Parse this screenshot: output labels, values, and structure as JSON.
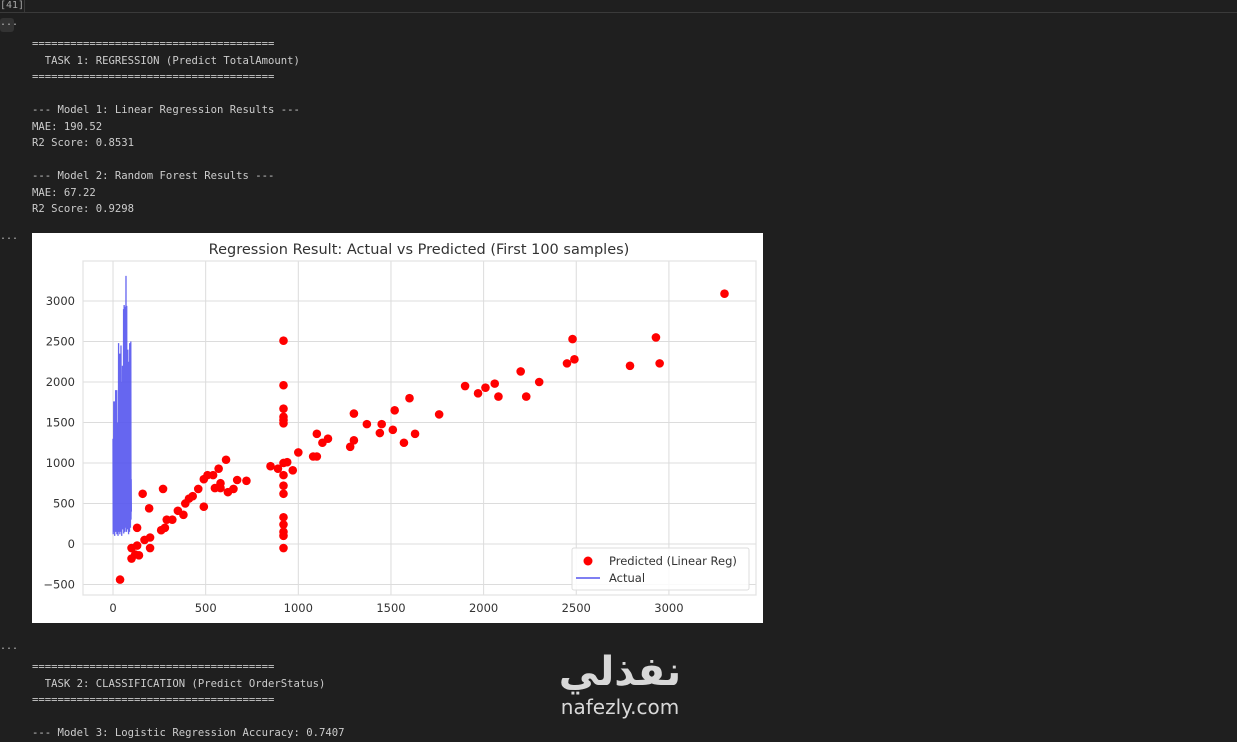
{
  "cell": {
    "execution_count": "[41]",
    "more_label": "..."
  },
  "output_top": [
    "======================================",
    "  TASK 1: REGRESSION (Predict TotalAmount)",
    "======================================",
    "",
    "--- Model 1: Linear Regression Results ---",
    "MAE: 190.52",
    "R2 Score: 0.8531",
    "",
    "--- Model 2: Random Forest Results ---",
    "MAE: 67.22",
    "R2 Score: 0.9298"
  ],
  "output_bottom": [
    "======================================",
    "  TASK 2: CLASSIFICATION (Predict OrderStatus)",
    "======================================",
    "",
    "--- Model 3: Logistic Regression Accuracy: 0.7407"
  ],
  "watermark": {
    "arabic": "نفذلي",
    "latin": "nafezly.com"
  },
  "chart_data": {
    "type": "scatter",
    "title": "Regression Result: Actual vs Predicted (First 100 samples)",
    "xlim": [
      -162,
      3470
    ],
    "ylim": [
      -630,
      3494
    ],
    "xticks": [
      0,
      500,
      1000,
      1500,
      2000,
      2500,
      3000
    ],
    "yticks": [
      -500,
      0,
      500,
      1000,
      1500,
      2000,
      2500,
      3000
    ],
    "grid": true,
    "legend": {
      "placement": "lower-right",
      "entries": [
        "Predicted (Linear Reg)",
        "Actual"
      ]
    },
    "colors": {
      "predicted": "#ff0000",
      "actual": "#5555ee"
    },
    "series": [
      {
        "name": "Predicted (Linear Reg)",
        "kind": "scatter",
        "points": [
          [
            38,
            -440
          ],
          [
            160,
            620
          ],
          [
            195,
            440
          ],
          [
            130,
            200
          ],
          [
            270,
            680
          ],
          [
            100,
            -180
          ],
          [
            120,
            -130
          ],
          [
            100,
            -50
          ],
          [
            130,
            -20
          ],
          [
            170,
            50
          ],
          [
            200,
            80
          ],
          [
            200,
            -50
          ],
          [
            140,
            -140
          ],
          [
            260,
            170
          ],
          [
            280,
            200
          ],
          [
            290,
            300
          ],
          [
            320,
            300
          ],
          [
            350,
            410
          ],
          [
            380,
            360
          ],
          [
            390,
            500
          ],
          [
            410,
            560
          ],
          [
            430,
            590
          ],
          [
            460,
            680
          ],
          [
            490,
            460
          ],
          [
            490,
            800
          ],
          [
            510,
            850
          ],
          [
            540,
            850
          ],
          [
            550,
            690
          ],
          [
            570,
            930
          ],
          [
            580,
            750
          ],
          [
            580,
            690
          ],
          [
            620,
            640
          ],
          [
            610,
            1040
          ],
          [
            650,
            680
          ],
          [
            670,
            790
          ],
          [
            720,
            780
          ],
          [
            920,
            2510
          ],
          [
            920,
            1960
          ],
          [
            920,
            1670
          ],
          [
            920,
            1570
          ],
          [
            920,
            1530
          ],
          [
            920,
            1490
          ],
          [
            920,
            1000
          ],
          [
            920,
            850
          ],
          [
            920,
            720
          ],
          [
            920,
            620
          ],
          [
            920,
            330
          ],
          [
            920,
            240
          ],
          [
            920,
            150
          ],
          [
            920,
            100
          ],
          [
            920,
            -50
          ],
          [
            850,
            960
          ],
          [
            890,
            930
          ],
          [
            940,
            1010
          ],
          [
            970,
            910
          ],
          [
            1000,
            1130
          ],
          [
            1080,
            1080
          ],
          [
            1100,
            1080
          ],
          [
            1100,
            1360
          ],
          [
            1130,
            1250
          ],
          [
            1160,
            1300
          ],
          [
            1280,
            1200
          ],
          [
            1300,
            1610
          ],
          [
            1300,
            1280
          ],
          [
            1370,
            1480
          ],
          [
            1440,
            1370
          ],
          [
            1450,
            1480
          ],
          [
            1510,
            1410
          ],
          [
            1520,
            1650
          ],
          [
            1570,
            1250
          ],
          [
            1600,
            1800
          ],
          [
            1630,
            1360
          ],
          [
            1760,
            1600
          ],
          [
            1900,
            1950
          ],
          [
            1970,
            1860
          ],
          [
            2010,
            1930
          ],
          [
            2060,
            1980
          ],
          [
            2080,
            1820
          ],
          [
            2200,
            2130
          ],
          [
            2230,
            1820
          ],
          [
            2300,
            2000
          ],
          [
            2450,
            2230
          ],
          [
            2480,
            2530
          ],
          [
            2490,
            2280
          ],
          [
            2790,
            2200
          ],
          [
            2930,
            2550
          ],
          [
            2950,
            2230
          ],
          [
            3300,
            3090
          ]
        ]
      },
      {
        "name": "Actual",
        "kind": "line",
        "y": [
          1300,
          120,
          900,
          300,
          1760,
          150,
          600,
          200,
          1760,
          100,
          400,
          1200,
          180,
          900,
          1900,
          150,
          700,
          200,
          1000,
          300,
          1900,
          120,
          800,
          400,
          1500,
          200,
          600,
          100,
          1300,
          250,
          2480,
          150,
          900,
          300,
          2100,
          200,
          2350,
          120,
          700,
          1500,
          200,
          1100,
          300,
          2450,
          150,
          800,
          2000,
          100,
          600,
          1200,
          300,
          2200,
          180,
          900,
          400,
          1600,
          200,
          2900,
          130,
          700,
          2950,
          250,
          1000,
          2300,
          150,
          1800,
          300,
          2930,
          200,
          900,
          3310,
          400,
          1200,
          150,
          2940,
          300,
          800,
          2200,
          180,
          1100,
          2400,
          250,
          700,
          1500,
          120,
          2250,
          300,
          900,
          1800,
          150,
          2480,
          400,
          1000,
          2200,
          200,
          1300,
          2500,
          300,
          800,
          400
        ]
      }
    ]
  }
}
